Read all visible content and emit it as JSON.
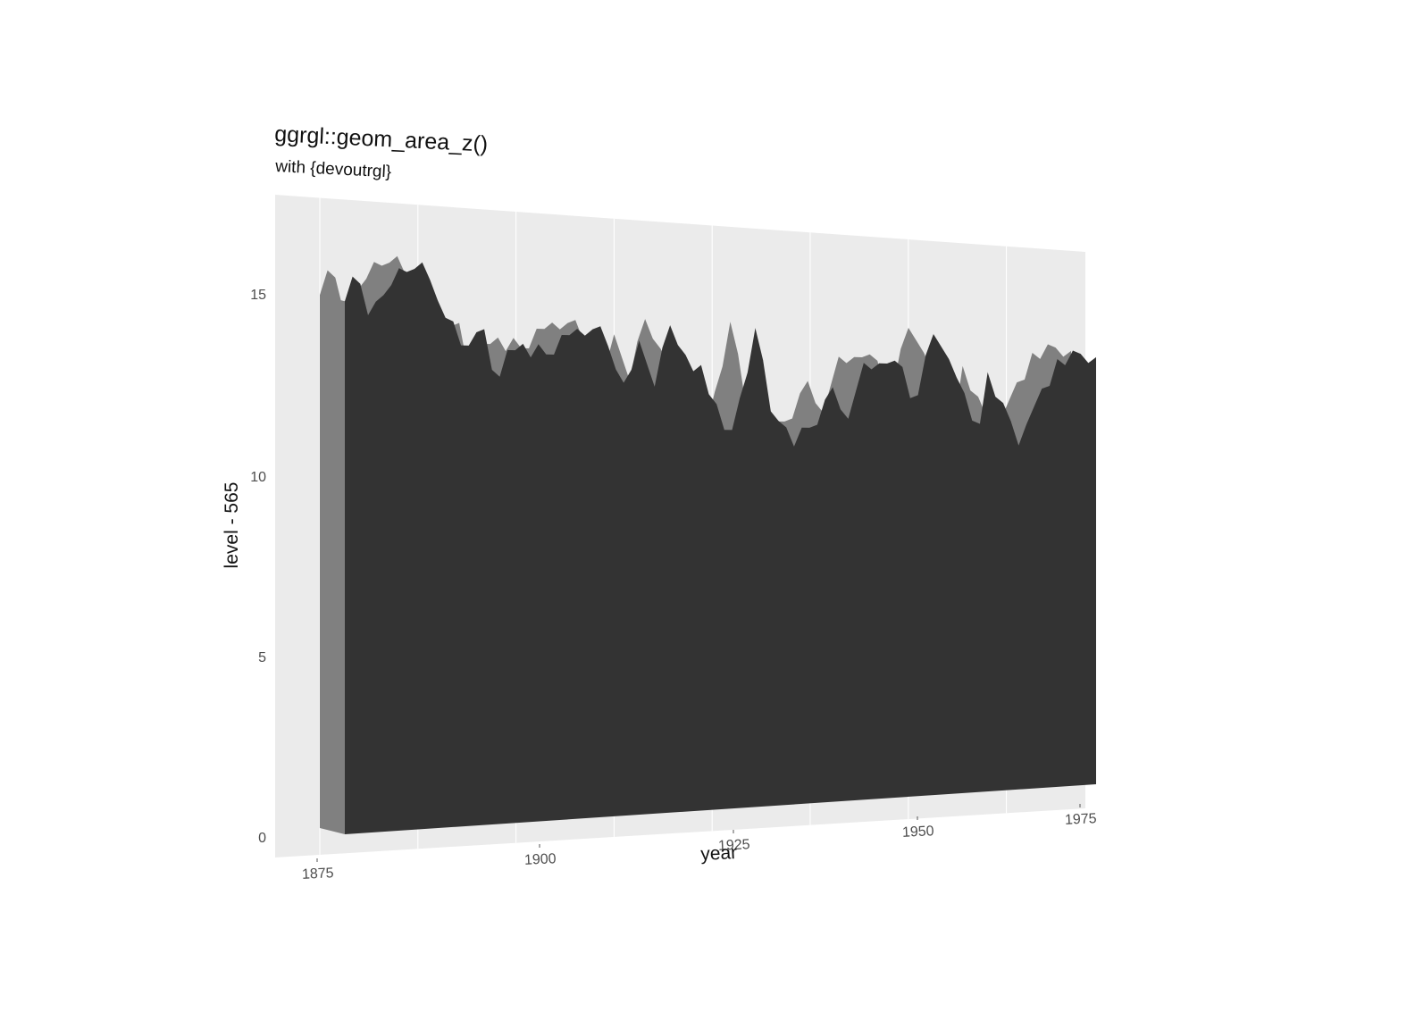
{
  "chart_data": {
    "type": "area",
    "title": "ggrgl::geom_area_z()",
    "subtitle": "with {devoutrgl}",
    "xlabel": "year",
    "ylabel": "level - 565",
    "xlim": [
      1875,
      1972
    ],
    "ylim": [
      0,
      17.5
    ],
    "x_ticks": [
      "1875",
      "1900",
      "1925",
      "1950",
      "1975"
    ],
    "y_ticks": [
      "0",
      "5",
      "10",
      "15"
    ],
    "grid": true,
    "legend": "none",
    "colors": {
      "panel_background": "#ebebeb",
      "grid_line": "#ffffff",
      "area_front": "#333333",
      "area_side": "#808080",
      "text": "#111111",
      "tick_text": "#4d4d4d"
    },
    "series": [
      {
        "x": [
          1875,
          1876,
          1877,
          1878,
          1879,
          1880,
          1881,
          1882,
          1883,
          1884,
          1885,
          1886,
          1887,
          1888,
          1889,
          1890,
          1891,
          1892,
          1893,
          1894,
          1895,
          1896,
          1897,
          1898,
          1899,
          1900,
          1901,
          1902,
          1903,
          1904,
          1905,
          1906,
          1907,
          1908,
          1909,
          1910,
          1911,
          1912,
          1913,
          1914,
          1915,
          1916,
          1917,
          1918,
          1919,
          1920,
          1921,
          1922,
          1923,
          1924,
          1925,
          1926,
          1927,
          1928,
          1929,
          1930,
          1931,
          1932,
          1933,
          1934,
          1935,
          1936,
          1937,
          1938,
          1939,
          1940,
          1941,
          1942,
          1943,
          1944,
          1945,
          1946,
          1947,
          1948,
          1949,
          1950,
          1951,
          1952,
          1953,
          1954,
          1955,
          1956,
          1957,
          1958,
          1959,
          1960,
          1961,
          1962,
          1963,
          1964,
          1965,
          1966,
          1967,
          1968,
          1969,
          1970,
          1971,
          1972
        ],
        "values": [
          15.38,
          16.1,
          15.9,
          15.0,
          15.4,
          15.6,
          15.9,
          16.4,
          16.3,
          16.4,
          16.6,
          16.1,
          15.5,
          15.0,
          14.9,
          14.2,
          14.2,
          14.6,
          14.7,
          13.5,
          13.3,
          14.1,
          14.1,
          14.3,
          13.9,
          14.3,
          14.0,
          14.0,
          14.6,
          14.6,
          14.8,
          14.6,
          14.8,
          14.9,
          14.3,
          13.6,
          13.2,
          13.6,
          14.5,
          13.8,
          13.1,
          14.3,
          15.0,
          14.4,
          14.1,
          13.6,
          13.8,
          12.9,
          12.6,
          11.8,
          11.8,
          12.8,
          13.6,
          15.0,
          14.0,
          12.4,
          12.1,
          11.9,
          11.3,
          11.9,
          11.9,
          12.0,
          12.8,
          13.2,
          12.5,
          12.2,
          13.1,
          14.0,
          13.8,
          14.0,
          14.0,
          14.1,
          13.9,
          12.9,
          13.0,
          14.3,
          15.0,
          14.6,
          14.2,
          13.6,
          13.1,
          12.2,
          12.1,
          13.8,
          13.0,
          12.8,
          12.2,
          11.4,
          12.1,
          12.7,
          13.3,
          13.4,
          14.3,
          14.1,
          14.6,
          14.5,
          14.2,
          14.4
        ]
      }
    ]
  }
}
